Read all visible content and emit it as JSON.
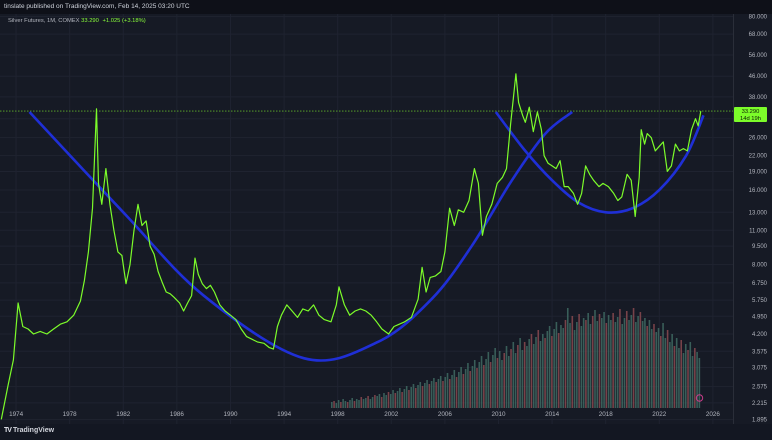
{
  "header": {
    "published": "tinslate published on TradingView.com, Feb 14, 2025 03:20 UTC"
  },
  "legend": {
    "symbol": "Silver Futures, 1M, COMEX",
    "price": "33.290",
    "change": "+1.025 (+3.18%)"
  },
  "footer": {
    "logo_mark": "TV",
    "logo_text": "TradingView"
  },
  "last_price_label": {
    "price": "33.290",
    "countdown": "14d 19h"
  },
  "colors": {
    "background": "#161a25",
    "price_line": "#7cfc2a",
    "cup_arc": "#1f2fd6",
    "last_price_box": "#7cfc2a",
    "volume_up": "#3f6b63",
    "volume_down": "#8a4a50"
  },
  "chart_data": {
    "type": "line",
    "y_scale": "log",
    "y_ticks": [
      "80.000",
      "68.000",
      "56.000",
      "46.000",
      "38.000",
      "31.000",
      "26.000",
      "22.000",
      "19.000",
      "16.000",
      "13.000",
      "11.000",
      "9.500",
      "8.000",
      "6.750",
      "5.750",
      "4.950",
      "4.200",
      "3.575",
      "3.075",
      "2.575",
      "2.215",
      "1.895"
    ],
    "x_ticks": [
      "1974",
      "1978",
      "1982",
      "1986",
      "1990",
      "1994",
      "1998",
      "2002",
      "2006",
      "2010",
      "2014",
      "2018",
      "2022",
      "2026"
    ],
    "xlim": [
      1972.8,
      2027.5
    ],
    "ylim": [
      1.82,
      82
    ],
    "series": [
      {
        "points": [
          [
            1972.9,
            1.9
          ],
          [
            1973.4,
            2.6
          ],
          [
            1973.8,
            3.3
          ],
          [
            1974.15,
            5.6
          ],
          [
            1974.5,
            4.5
          ],
          [
            1974.9,
            4.4
          ],
          [
            1975.3,
            4.2
          ],
          [
            1975.8,
            4.3
          ],
          [
            1976.3,
            4.2
          ],
          [
            1976.8,
            4.4
          ],
          [
            1977.3,
            4.6
          ],
          [
            1977.8,
            4.7
          ],
          [
            1978.3,
            5.0
          ],
          [
            1978.8,
            5.7
          ],
          [
            1979.1,
            6.9
          ],
          [
            1979.4,
            9.0
          ],
          [
            1979.7,
            13.5
          ],
          [
            1980.0,
            34.0
          ],
          [
            1980.15,
            17.0
          ],
          [
            1980.4,
            14.0
          ],
          [
            1980.7,
            19.5
          ],
          [
            1981.0,
            14.0
          ],
          [
            1981.3,
            11.0
          ],
          [
            1981.6,
            9.0
          ],
          [
            1981.9,
            8.7
          ],
          [
            1982.2,
            6.7
          ],
          [
            1982.5,
            8.0
          ],
          [
            1982.8,
            11.0
          ],
          [
            1983.1,
            14.0
          ],
          [
            1983.4,
            11.5
          ],
          [
            1983.7,
            12.0
          ],
          [
            1984.0,
            9.5
          ],
          [
            1984.3,
            8.8
          ],
          [
            1984.6,
            7.5
          ],
          [
            1984.9,
            6.8
          ],
          [
            1985.2,
            6.2
          ],
          [
            1985.5,
            6.1
          ],
          [
            1985.8,
            5.9
          ],
          [
            1986.2,
            5.6
          ],
          [
            1986.5,
            5.2
          ],
          [
            1986.8,
            5.6
          ],
          [
            1987.1,
            6.0
          ],
          [
            1987.35,
            8.5
          ],
          [
            1987.6,
            7.3
          ],
          [
            1987.9,
            6.7
          ],
          [
            1988.2,
            6.4
          ],
          [
            1988.5,
            6.6
          ],
          [
            1988.8,
            6.2
          ],
          [
            1989.2,
            5.5
          ],
          [
            1989.6,
            5.2
          ],
          [
            1990.0,
            5.0
          ],
          [
            1990.4,
            4.8
          ],
          [
            1990.8,
            4.4
          ],
          [
            1991.2,
            4.1
          ],
          [
            1991.6,
            4.0
          ],
          [
            1992.0,
            3.9
          ],
          [
            1992.5,
            3.85
          ],
          [
            1992.9,
            3.7
          ],
          [
            1993.2,
            3.65
          ],
          [
            1993.5,
            4.5
          ],
          [
            1993.8,
            5.0
          ],
          [
            1994.2,
            5.5
          ],
          [
            1994.6,
            5.2
          ],
          [
            1995.0,
            4.9
          ],
          [
            1995.4,
            5.3
          ],
          [
            1995.8,
            5.2
          ],
          [
            1996.2,
            5.5
          ],
          [
            1996.6,
            5.0
          ],
          [
            1997.0,
            4.8
          ],
          [
            1997.5,
            4.7
          ],
          [
            1997.9,
            5.5
          ],
          [
            1998.1,
            6.5
          ],
          [
            1998.5,
            5.5
          ],
          [
            1998.9,
            5.0
          ],
          [
            1999.3,
            5.2
          ],
          [
            1999.7,
            5.3
          ],
          [
            2000.1,
            5.2
          ],
          [
            2000.5,
            5.0
          ],
          [
            2000.9,
            4.7
          ],
          [
            2001.3,
            4.4
          ],
          [
            2001.8,
            4.2
          ],
          [
            2002.2,
            4.5
          ],
          [
            2002.6,
            4.6
          ],
          [
            2003.0,
            4.7
          ],
          [
            2003.5,
            4.9
          ],
          [
            2004.0,
            5.8
          ],
          [
            2004.3,
            7.8
          ],
          [
            2004.6,
            6.2
          ],
          [
            2004.9,
            7.1
          ],
          [
            2005.3,
            7.2
          ],
          [
            2005.7,
            7.5
          ],
          [
            2006.0,
            9.0
          ],
          [
            2006.35,
            13.5
          ],
          [
            2006.7,
            11.5
          ],
          [
            2007.0,
            13.3
          ],
          [
            2007.4,
            13.0
          ],
          [
            2007.8,
            14.5
          ],
          [
            2008.2,
            19.5
          ],
          [
            2008.5,
            17.0
          ],
          [
            2008.8,
            10.5
          ],
          [
            2009.1,
            12.5
          ],
          [
            2009.5,
            14.0
          ],
          [
            2009.9,
            17.0
          ],
          [
            2010.3,
            18.0
          ],
          [
            2010.6,
            19.5
          ],
          [
            2010.9,
            29.5
          ],
          [
            2011.1,
            37.0
          ],
          [
            2011.3,
            47.0
          ],
          [
            2011.5,
            36.0
          ],
          [
            2011.8,
            32.0
          ],
          [
            2012.0,
            30.0
          ],
          [
            2012.3,
            34.5
          ],
          [
            2012.6,
            27.5
          ],
          [
            2012.9,
            33.0
          ],
          [
            2013.2,
            28.0
          ],
          [
            2013.4,
            22.0
          ],
          [
            2013.7,
            20.5
          ],
          [
            2014.0,
            20.0
          ],
          [
            2014.3,
            19.5
          ],
          [
            2014.6,
            21.0
          ],
          [
            2014.9,
            16.5
          ],
          [
            2015.2,
            16.5
          ],
          [
            2015.6,
            15.5
          ],
          [
            2015.9,
            14.0
          ],
          [
            2016.2,
            15.5
          ],
          [
            2016.5,
            20.0
          ],
          [
            2016.8,
            18.5
          ],
          [
            2017.1,
            17.5
          ],
          [
            2017.5,
            16.5
          ],
          [
            2017.8,
            17.0
          ],
          [
            2018.2,
            16.5
          ],
          [
            2018.6,
            15.5
          ],
          [
            2018.9,
            14.5
          ],
          [
            2019.2,
            15.0
          ],
          [
            2019.6,
            18.5
          ],
          [
            2019.9,
            17.5
          ],
          [
            2020.2,
            12.5
          ],
          [
            2020.5,
            18.0
          ],
          [
            2020.65,
            28.0
          ],
          [
            2020.9,
            24.5
          ],
          [
            2021.1,
            27.0
          ],
          [
            2021.4,
            26.0
          ],
          [
            2021.7,
            23.0
          ],
          [
            2022.0,
            24.0
          ],
          [
            2022.3,
            25.0
          ],
          [
            2022.6,
            19.0
          ],
          [
            2022.9,
            20.0
          ],
          [
            2023.2,
            24.5
          ],
          [
            2023.5,
            23.0
          ],
          [
            2023.8,
            23.5
          ],
          [
            2024.1,
            23.0
          ],
          [
            2024.4,
            28.0
          ],
          [
            2024.7,
            31.0
          ],
          [
            2024.9,
            29.0
          ],
          [
            2025.1,
            33.29
          ]
        ]
      }
    ],
    "annotations": [
      {
        "type": "arc",
        "points": [
          [
            1975.0,
            33.0
          ],
          [
            1982.0,
            13.0
          ],
          [
            1988.0,
            6.0
          ],
          [
            1995.5,
            3.35
          ],
          [
            2001.0,
            3.9
          ],
          [
            2005.0,
            5.8
          ],
          [
            2008.0,
            9.5
          ],
          [
            2011.0,
            17.5
          ],
          [
            2013.5,
            27.0
          ],
          [
            2015.5,
            33.0
          ]
        ]
      },
      {
        "type": "arc",
        "points": [
          [
            2009.8,
            33.0
          ],
          [
            2012.0,
            23.0
          ],
          [
            2014.0,
            17.5
          ],
          [
            2016.0,
            14.2
          ],
          [
            2018.0,
            13.0
          ],
          [
            2020.0,
            13.5
          ],
          [
            2022.0,
            16.0
          ],
          [
            2024.0,
            22.0
          ],
          [
            2025.3,
            32.0
          ]
        ]
      },
      {
        "type": "hline",
        "y": 33.29
      }
    ],
    "volume": {
      "start_year": 1997.5,
      "end_year": 2025.1,
      "values": [
        6,
        7,
        5,
        8,
        6,
        9,
        7,
        6,
        8,
        10,
        7,
        9,
        8,
        11,
        9,
        10,
        12,
        9,
        11,
        13,
        12,
        14,
        11,
        15,
        13,
        16,
        14,
        18,
        15,
        17,
        20,
        16,
        19,
        22,
        18,
        21,
        24,
        20,
        23,
        26,
        22,
        25,
        28,
        24,
        27,
        30,
        26,
        29,
        32,
        27,
        31,
        35,
        29,
        33,
        38,
        31,
        36,
        41,
        34,
        39,
        45,
        37,
        42,
        48,
        40,
        46,
        52,
        43,
        49,
        56,
        46,
        53,
        60,
        50,
        57,
        48,
        55,
        62,
        52,
        59,
        66,
        55,
        63,
        70,
        58,
        66,
        62,
        69,
        74,
        64,
        71,
        78,
        67,
        74,
        70,
        77,
        82,
        72,
        79,
        86,
        75,
        83,
        80,
        88,
        100,
        85,
        92,
        78,
        86,
        94,
        82,
        90,
        88,
        95,
        84,
        92,
        98,
        87,
        94,
        90,
        96,
        85,
        93,
        88,
        95,
        86,
        91,
        99,
        84,
        90,
        97,
        88,
        93,
        100,
        86,
        92,
        96,
        87,
        90,
        82,
        88,
        79,
        84,
        76,
        80,
        72,
        85,
        70,
        78,
        66,
        74,
        62,
        70,
        60,
        68,
        55,
        64,
        58,
        66,
        52,
        60,
        56,
        50
      ],
      "max": 100
    }
  }
}
